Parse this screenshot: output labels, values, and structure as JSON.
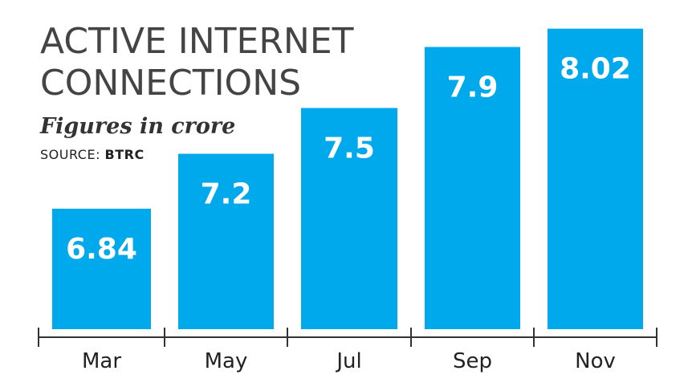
{
  "colors": {
    "bar": "#00a8ec",
    "axis": "#333333"
  },
  "chart_data": {
    "type": "bar",
    "title_lines": [
      "ACTIVE INTERNET",
      "CONNECTIONS"
    ],
    "subtitle": "Figures in crore",
    "source_prefix": "SOURCE: ",
    "source_name": "BTRC",
    "categories": [
      "Mar",
      "May",
      "Jul",
      "Sep",
      "Nov"
    ],
    "values": [
      6.84,
      7.2,
      7.5,
      7.9,
      8.02
    ],
    "value_labels": [
      "6.84",
      "7.2",
      "7.5",
      "7.9",
      "8.02"
    ],
    "grid": false,
    "legend": "none"
  }
}
